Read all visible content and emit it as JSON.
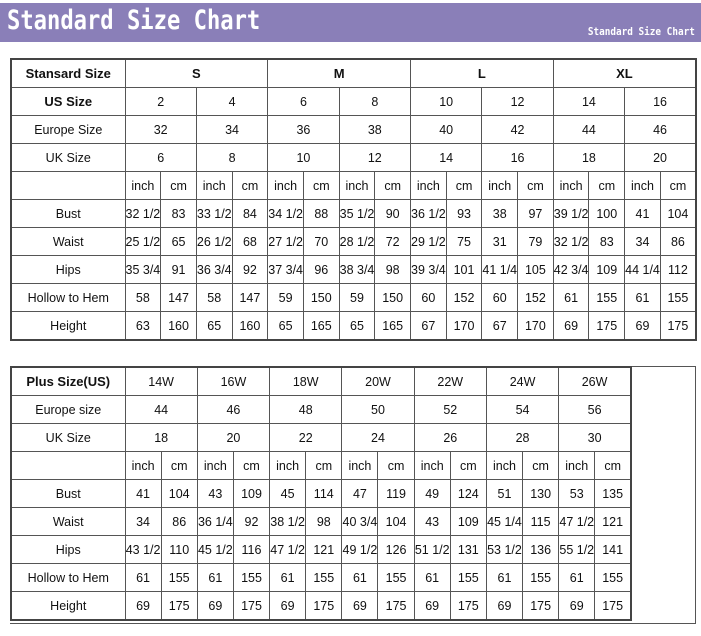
{
  "header": {
    "title": "Standard Size Chart",
    "subtitle": "Standard Size Chart",
    "banner_color": "#8a7fb8"
  },
  "standard": {
    "corner": "Stansard Size",
    "groups": [
      "S",
      "M",
      "L",
      "XL"
    ],
    "rows": [
      {
        "label": "US Size",
        "bold": true,
        "values": [
          "2",
          "4",
          "6",
          "8",
          "10",
          "12",
          "14",
          "16"
        ]
      },
      {
        "label": "Europe Size",
        "values": [
          "32",
          "34",
          "36",
          "38",
          "40",
          "42",
          "44",
          "46"
        ]
      },
      {
        "label": "UK Size",
        "values": [
          "6",
          "8",
          "10",
          "12",
          "14",
          "16",
          "18",
          "20"
        ]
      }
    ],
    "units": [
      "inch",
      "cm"
    ],
    "measures": [
      {
        "label": "Bust",
        "values": [
          "32 1/2",
          "83",
          "33 1/2",
          "84",
          "34 1/2",
          "88",
          "35 1/2",
          "90",
          "36 1/2",
          "93",
          "38",
          "97",
          "39 1/2",
          "100",
          "41",
          "104"
        ]
      },
      {
        "label": "Waist",
        "values": [
          "25 1/2",
          "65",
          "26 1/2",
          "68",
          "27 1/2",
          "70",
          "28 1/2",
          "72",
          "29 1/2",
          "75",
          "31",
          "79",
          "32 1/2",
          "83",
          "34",
          "86"
        ]
      },
      {
        "label": "Hips",
        "values": [
          "35 3/4",
          "91",
          "36 3/4",
          "92",
          "37 3/4",
          "96",
          "38 3/4",
          "98",
          "39 3/4",
          "101",
          "41 1/4",
          "105",
          "42 3/4",
          "109",
          "44 1/4",
          "112"
        ]
      },
      {
        "label": "Hollow to Hem",
        "values": [
          "58",
          "147",
          "58",
          "147",
          "59",
          "150",
          "59",
          "150",
          "60",
          "152",
          "60",
          "152",
          "61",
          "155",
          "61",
          "155"
        ]
      },
      {
        "label": "Height",
        "values": [
          "63",
          "160",
          "65",
          "160",
          "65",
          "165",
          "65",
          "165",
          "67",
          "170",
          "67",
          "170",
          "69",
          "175",
          "69",
          "175"
        ]
      }
    ]
  },
  "plus": {
    "corner": "Plus Size(US)",
    "sizes": [
      "14W",
      "16W",
      "18W",
      "20W",
      "22W",
      "24W",
      "26W"
    ],
    "rows": [
      {
        "label": "Europe size",
        "values": [
          "44",
          "46",
          "48",
          "50",
          "52",
          "54",
          "56"
        ]
      },
      {
        "label": "UK Size",
        "values": [
          "18",
          "20",
          "22",
          "24",
          "26",
          "28",
          "30"
        ]
      }
    ],
    "units": [
      "inch",
      "cm"
    ],
    "measures": [
      {
        "label": "Bust",
        "values": [
          "41",
          "104",
          "43",
          "109",
          "45",
          "114",
          "47",
          "119",
          "49",
          "124",
          "51",
          "130",
          "53",
          "135"
        ]
      },
      {
        "label": "Waist",
        "values": [
          "34",
          "86",
          "36 1/4",
          "92",
          "38 1/2",
          "98",
          "40 3/4",
          "104",
          "43",
          "109",
          "45 1/4",
          "115",
          "47 1/2",
          "121"
        ]
      },
      {
        "label": "Hips",
        "values": [
          "43 1/2",
          "110",
          "45 1/2",
          "116",
          "47 1/2",
          "121",
          "49 1/2",
          "126",
          "51 1/2",
          "131",
          "53 1/2",
          "136",
          "55 1/2",
          "141"
        ]
      },
      {
        "label": "Hollow to Hem",
        "values": [
          "61",
          "155",
          "61",
          "155",
          "61",
          "155",
          "61",
          "155",
          "61",
          "155",
          "61",
          "155",
          "61",
          "155"
        ]
      },
      {
        "label": "Height",
        "values": [
          "69",
          "175",
          "69",
          "175",
          "69",
          "175",
          "69",
          "175",
          "69",
          "175",
          "69",
          "175",
          "69",
          "175"
        ]
      }
    ]
  }
}
